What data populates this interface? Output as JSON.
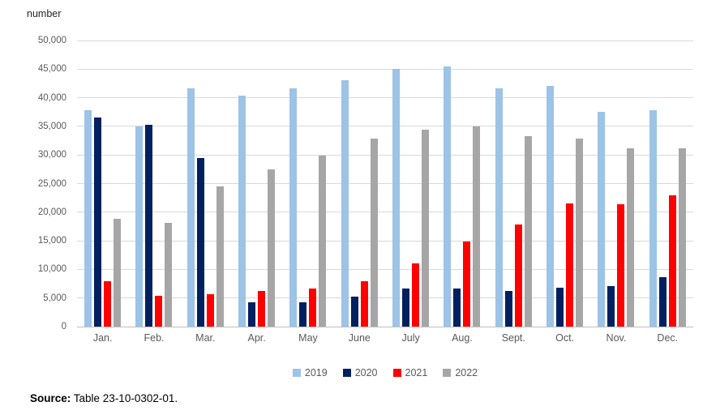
{
  "chart": {
    "y_axis_title": "number",
    "source_label": "Source:",
    "source_text": " Table 23-10-0302-01."
  },
  "chart_data": {
    "type": "bar",
    "title": "",
    "xlabel": "",
    "ylabel": "number",
    "grid": true,
    "legend_position": "bottom",
    "ylim": [
      0,
      50000
    ],
    "ytick_step": 5000,
    "ytick_labels": [
      "0",
      "5,000",
      "10,000",
      "15,000",
      "20,000",
      "25,000",
      "30,000",
      "35,000",
      "40,000",
      "45,000",
      "50,000"
    ],
    "categories": [
      "Jan.",
      "Feb.",
      "Mar.",
      "Apr.",
      "May",
      "June",
      "July",
      "Aug.",
      "Sept.",
      "Oct.",
      "Nov.",
      "Dec."
    ],
    "series": [
      {
        "name": "2019",
        "color": "#9DC3E6",
        "values": [
          37800,
          35000,
          41600,
          40400,
          41700,
          43100,
          45000,
          45500,
          41600,
          42000,
          37500,
          37800
        ]
      },
      {
        "name": "2020",
        "color": "#002060",
        "values": [
          36500,
          35200,
          29400,
          4300,
          4200,
          5300,
          6600,
          6600,
          6300,
          6800,
          7100,
          8600
        ]
      },
      {
        "name": "2021",
        "color": "#FF0000",
        "values": [
          7900,
          5400,
          5700,
          6300,
          6600,
          7900,
          11000,
          14900,
          17800,
          21600,
          21400,
          22900
        ]
      },
      {
        "name": "2022",
        "color": "#A6A6A6",
        "values": [
          18900,
          18200,
          24500,
          27500,
          29900,
          32800,
          34400,
          35000,
          33300,
          32900,
          31100,
          31100
        ]
      }
    ],
    "colors": {
      "gridline": "#d9d9d9",
      "axis_line": "#bfbfbf",
      "tick_text": "#595959"
    }
  }
}
